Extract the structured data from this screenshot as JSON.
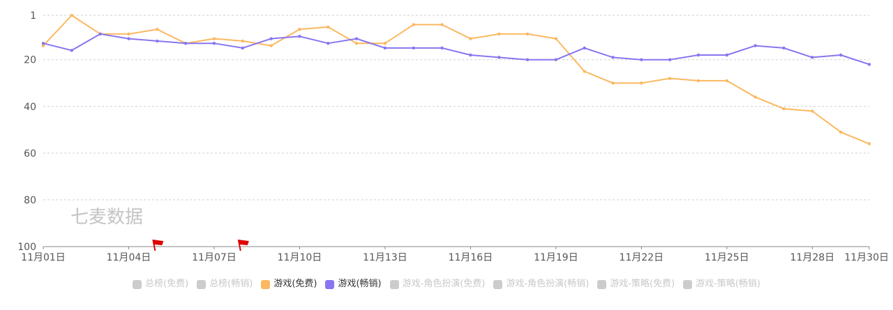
{
  "chart_data": {
    "type": "line",
    "y_inverted": true,
    "ylim": [
      1,
      100
    ],
    "y_ticks": [
      1,
      20,
      40,
      60,
      80,
      100
    ],
    "x": [
      "11月01日",
      "11月02日",
      "11月03日",
      "11月04日",
      "11月05日",
      "11月06日",
      "11月07日",
      "11月08日",
      "11月09日",
      "11月10日",
      "11月11日",
      "11月12日",
      "11月13日",
      "11月14日",
      "11月15日",
      "11月16日",
      "11月17日",
      "11月18日",
      "11月19日",
      "11月20日",
      "11月21日",
      "11月22日",
      "11月23日",
      "11月24日",
      "11月25日",
      "11月26日",
      "11月27日",
      "11月28日",
      "11月29日",
      "11月30日"
    ],
    "x_tick_labels": [
      "11月01日",
      "11月04日",
      "11月07日",
      "11月10日",
      "11月13日",
      "11月16日",
      "11月19日",
      "11月22日",
      "11月25日",
      "11月28日",
      "11月30日"
    ],
    "series": [
      {
        "name": "游戏(免费)",
        "color": "#fbb860",
        "values": [
          14,
          1,
          9,
          9,
          7,
          13,
          11,
          12,
          14,
          7,
          6,
          13,
          13,
          5,
          5,
          11,
          9,
          9,
          11,
          25,
          30,
          30,
          28,
          29,
          29,
          36,
          41,
          42,
          51,
          56
        ]
      },
      {
        "name": "游戏(畅销)",
        "color": "#8875f0",
        "values": [
          13,
          16,
          9,
          11,
          12,
          13,
          13,
          15,
          11,
          10,
          13,
          11,
          15,
          15,
          15,
          18,
          19,
          20,
          20,
          15,
          19,
          20,
          20,
          18,
          18,
          14,
          15,
          19,
          18,
          22
        ]
      }
    ],
    "markers": [
      {
        "type": "flag",
        "x": "11月05日",
        "color": "#dd0000"
      },
      {
        "type": "flag",
        "x": "11月08日",
        "color": "#dd0000"
      }
    ],
    "watermark": "七麦数据",
    "legend": {
      "position": "bottom",
      "items": [
        {
          "label": "总榜(免费)",
          "color": "#cccccc",
          "active": false
        },
        {
          "label": "总榜(畅销)",
          "color": "#cccccc",
          "active": false
        },
        {
          "label": "游戏(免费)",
          "color": "#fbb860",
          "active": true
        },
        {
          "label": "游戏(畅销)",
          "color": "#8875f0",
          "active": true
        },
        {
          "label": "游戏-角色扮演(免费)",
          "color": "#cccccc",
          "active": false
        },
        {
          "label": "游戏-角色扮演(畅销)",
          "color": "#cccccc",
          "active": false
        },
        {
          "label": "游戏-策略(免费)",
          "color": "#cccccc",
          "active": false
        },
        {
          "label": "游戏-策略(畅销)",
          "color": "#cccccc",
          "active": false
        }
      ]
    }
  }
}
